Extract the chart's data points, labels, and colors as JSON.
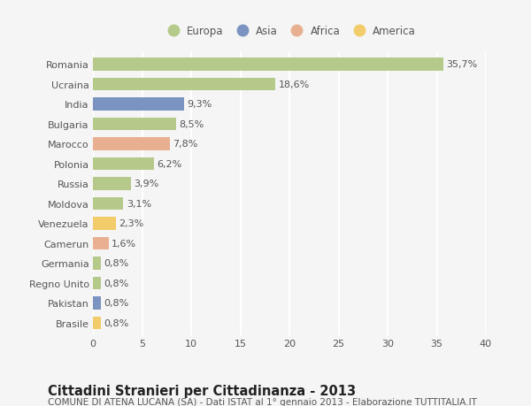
{
  "categories": [
    "Romania",
    "Ucraina",
    "India",
    "Bulgaria",
    "Marocco",
    "Polonia",
    "Russia",
    "Moldova",
    "Venezuela",
    "Camerun",
    "Germania",
    "Regno Unito",
    "Pakistan",
    "Brasile"
  ],
  "values": [
    35.7,
    18.6,
    9.3,
    8.5,
    7.8,
    6.2,
    3.9,
    3.1,
    2.3,
    1.6,
    0.8,
    0.8,
    0.8,
    0.8
  ],
  "labels": [
    "35,7%",
    "18,6%",
    "9,3%",
    "8,5%",
    "7,8%",
    "6,2%",
    "3,9%",
    "3,1%",
    "2,3%",
    "1,6%",
    "0,8%",
    "0,8%",
    "0,8%",
    "0,8%"
  ],
  "colors": [
    "#b5c98a",
    "#b5c98a",
    "#7b93c0",
    "#b5c98a",
    "#e8b090",
    "#b5c98a",
    "#b5c98a",
    "#b5c98a",
    "#f2cc6a",
    "#e8b090",
    "#b5c98a",
    "#b5c98a",
    "#7b93c0",
    "#f2cc6a"
  ],
  "legend_labels": [
    "Europa",
    "Asia",
    "Africa",
    "America"
  ],
  "legend_colors": [
    "#b5c98a",
    "#7b93c0",
    "#e8b090",
    "#f2cc6a"
  ],
  "title": "Cittadini Stranieri per Cittadinanza - 2013",
  "subtitle": "COMUNE DI ATENA LUCANA (SA) - Dati ISTAT al 1° gennaio 2013 - Elaborazione TUTTITALIA.IT",
  "xlim": [
    0,
    40
  ],
  "xticks": [
    0,
    5,
    10,
    15,
    20,
    25,
    30,
    35,
    40
  ],
  "bar_height": 0.65,
  "background_color": "#f5f5f5",
  "grid_color": "#ffffff",
  "text_color": "#555555",
  "title_fontsize": 10.5,
  "subtitle_fontsize": 7.5,
  "tick_fontsize": 8,
  "label_fontsize": 8
}
